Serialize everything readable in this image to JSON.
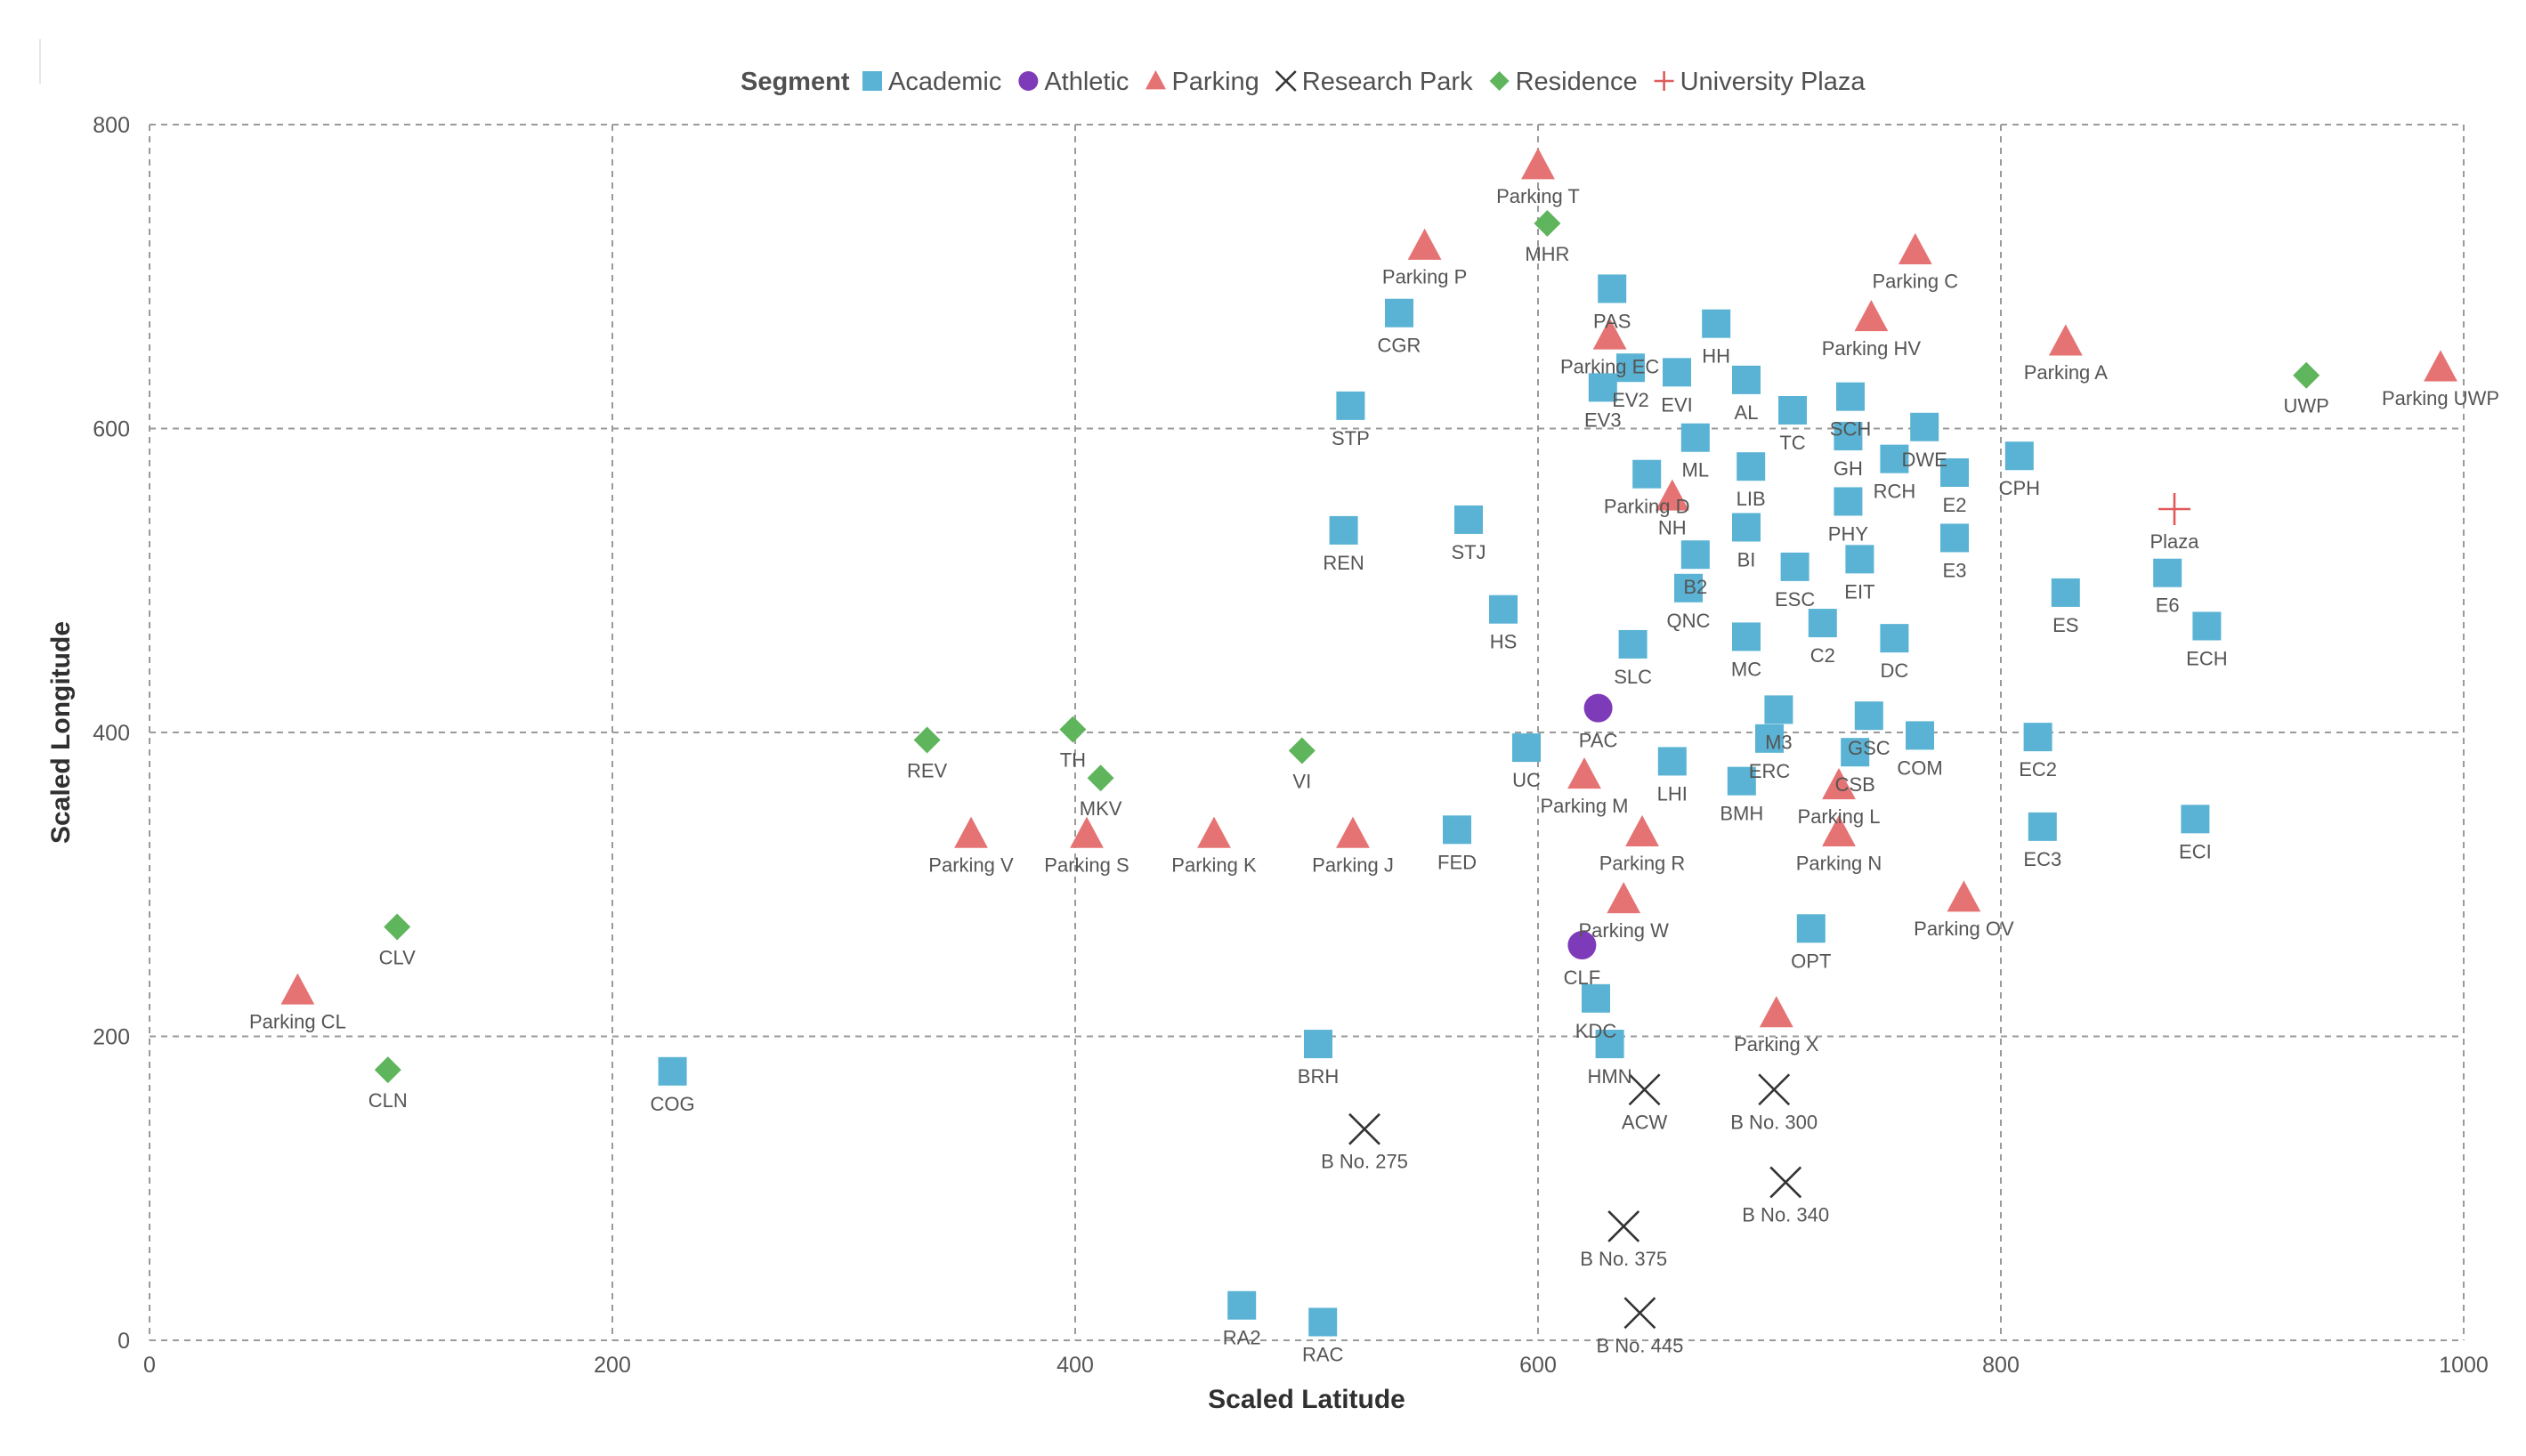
{
  "chart_data": {
    "type": "scatter",
    "title": "",
    "xlabel": "Scaled Latitude",
    "ylabel": "Scaled Longitude",
    "xlim": [
      0,
      1000
    ],
    "ylim": [
      0,
      800
    ],
    "xticks": [
      0,
      200,
      400,
      600,
      800,
      1000
    ],
    "yticks": [
      0,
      200,
      400,
      600,
      800
    ],
    "grid": true,
    "legend_title": "Segment",
    "legend_position": "top-center",
    "series": [
      {
        "name": "Academic",
        "marker": "square",
        "color": "#5AB3D4",
        "points": [
          {
            "label": "CGR",
            "x": 540,
            "y": 676
          },
          {
            "label": "STP",
            "x": 519,
            "y": 615
          },
          {
            "label": "REN",
            "x": 516,
            "y": 533
          },
          {
            "label": "STJ",
            "x": 570,
            "y": 540
          },
          {
            "label": "HS",
            "x": 585,
            "y": 481
          },
          {
            "label": "UC",
            "x": 595,
            "y": 390
          },
          {
            "label": "FED",
            "x": 565,
            "y": 336
          },
          {
            "label": "BRH",
            "x": 505,
            "y": 195
          },
          {
            "label": "COG",
            "x": 226,
            "y": 177
          },
          {
            "label": "RA2",
            "x": 472,
            "y": 23
          },
          {
            "label": "RAC",
            "x": 507,
            "y": 12
          },
          {
            "label": "PAS",
            "x": 632,
            "y": 692
          },
          {
            "label": "EV3",
            "x": 628,
            "y": 627
          },
          {
            "label": "EV2",
            "x": 640,
            "y": 640
          },
          {
            "label": "EVI",
            "x": 660,
            "y": 637
          },
          {
            "label": "HH",
            "x": 677,
            "y": 669
          },
          {
            "label": "AL",
            "x": 690,
            "y": 632
          },
          {
            "label": "TC",
            "x": 710,
            "y": 612
          },
          {
            "label": "SCH",
            "x": 735,
            "y": 621
          },
          {
            "label": "GH",
            "x": 734,
            "y": 595
          },
          {
            "label": "DWE",
            "x": 767,
            "y": 601
          },
          {
            "label": "RCH",
            "x": 754,
            "y": 580
          },
          {
            "label": "E2",
            "x": 780,
            "y": 571
          },
          {
            "label": "CPH",
            "x": 808,
            "y": 582
          },
          {
            "label": "ML",
            "x": 668,
            "y": 594
          },
          {
            "label": "Parking D",
            "x": 647,
            "y": 570
          },
          {
            "label": "LIB",
            "x": 692,
            "y": 575
          },
          {
            "label": "PHY",
            "x": 734,
            "y": 552
          },
          {
            "label": "E3",
            "x": 780,
            "y": 528
          },
          {
            "label": "BI",
            "x": 690,
            "y": 535
          },
          {
            "label": "B2",
            "x": 668,
            "y": 517
          },
          {
            "label": "QNC",
            "x": 665,
            "y": 495
          },
          {
            "label": "ESC",
            "x": 711,
            "y": 509
          },
          {
            "label": "EIT",
            "x": 739,
            "y": 514
          },
          {
            "label": "SLC",
            "x": 641,
            "y": 458
          },
          {
            "label": "MC",
            "x": 690,
            "y": 463
          },
          {
            "label": "C2",
            "x": 723,
            "y": 472
          },
          {
            "label": "DC",
            "x": 754,
            "y": 462
          },
          {
            "label": "M3",
            "x": 704,
            "y": 415
          },
          {
            "label": "ERC",
            "x": 700,
            "y": 396
          },
          {
            "label": "GSC",
            "x": 743,
            "y": 411
          },
          {
            "label": "CSB",
            "x": 737,
            "y": 387
          },
          {
            "label": "COM",
            "x": 765,
            "y": 398
          },
          {
            "label": "LHI",
            "x": 658,
            "y": 381
          },
          {
            "label": "BMH",
            "x": 688,
            "y": 368
          },
          {
            "label": "OPT",
            "x": 718,
            "y": 271
          },
          {
            "label": "KDC",
            "x": 625,
            "y": 225
          },
          {
            "label": "HMN",
            "x": 631,
            "y": 195
          },
          {
            "label": "ES",
            "x": 828,
            "y": 492
          },
          {
            "label": "E6",
            "x": 872,
            "y": 505
          },
          {
            "label": "ECH",
            "x": 889,
            "y": 470
          },
          {
            "label": "EC2",
            "x": 816,
            "y": 397
          },
          {
            "label": "EC3",
            "x": 818,
            "y": 338
          },
          {
            "label": "ECI",
            "x": 884,
            "y": 343
          }
        ]
      },
      {
        "name": "Athletic",
        "marker": "circle",
        "color": "#7E3BB9",
        "points": [
          {
            "label": "PAC",
            "x": 626,
            "y": 416
          },
          {
            "label": "CLF",
            "x": 619,
            "y": 260
          }
        ]
      },
      {
        "name": "Parking",
        "marker": "triangle",
        "color": "#E57373",
        "points": [
          {
            "label": "Parking T",
            "x": 600,
            "y": 773
          },
          {
            "label": "Parking P",
            "x": 551,
            "y": 720
          },
          {
            "label": "Parking EC",
            "x": 631,
            "y": 661
          },
          {
            "label": "Parking C",
            "x": 763,
            "y": 717
          },
          {
            "label": "Parking HV",
            "x": 744,
            "y": 673
          },
          {
            "label": "Parking A",
            "x": 828,
            "y": 657
          },
          {
            "label": "Parking UWP",
            "x": 990,
            "y": 640
          },
          {
            "label": "NH",
            "x": 658,
            "y": 555
          },
          {
            "label": "Parking M",
            "x": 620,
            "y": 372
          },
          {
            "label": "Parking R",
            "x": 645,
            "y": 334
          },
          {
            "label": "Parking W",
            "x": 637,
            "y": 290
          },
          {
            "label": "Parking L",
            "x": 730,
            "y": 365
          },
          {
            "label": "Parking N",
            "x": 730,
            "y": 334
          },
          {
            "label": "Parking OV",
            "x": 784,
            "y": 291
          },
          {
            "label": "Parking X",
            "x": 703,
            "y": 215
          },
          {
            "label": "Parking V",
            "x": 355,
            "y": 333
          },
          {
            "label": "Parking S",
            "x": 405,
            "y": 333
          },
          {
            "label": "Parking K",
            "x": 460,
            "y": 333
          },
          {
            "label": "Parking J",
            "x": 520,
            "y": 333
          },
          {
            "label": "Parking CL",
            "x": 64,
            "y": 230
          }
        ]
      },
      {
        "name": "Research Park",
        "marker": "x",
        "color": "#333333",
        "points": [
          {
            "label": "ACW",
            "x": 646,
            "y": 165
          },
          {
            "label": "B No. 300",
            "x": 702,
            "y": 165
          },
          {
            "label": "B No. 275",
            "x": 525,
            "y": 139
          },
          {
            "label": "B No. 340",
            "x": 707,
            "y": 104
          },
          {
            "label": "B No. 375",
            "x": 637,
            "y": 75
          },
          {
            "label": "B No. 445",
            "x": 644,
            "y": 18
          }
        ]
      },
      {
        "name": "Residence",
        "marker": "diamond",
        "color": "#5FB55C",
        "points": [
          {
            "label": "MHR",
            "x": 604,
            "y": 735
          },
          {
            "label": "UWP",
            "x": 932,
            "y": 635
          },
          {
            "label": "TH",
            "x": 399,
            "y": 402
          },
          {
            "label": "MKV",
            "x": 411,
            "y": 370
          },
          {
            "label": "REV",
            "x": 336,
            "y": 395
          },
          {
            "label": "VI",
            "x": 498,
            "y": 388
          },
          {
            "label": "CLV",
            "x": 107,
            "y": 272
          },
          {
            "label": "CLN",
            "x": 103,
            "y": 178
          }
        ]
      },
      {
        "name": "University Plaza",
        "marker": "plus",
        "color": "#E05A5A",
        "points": [
          {
            "label": "Plaza",
            "x": 875,
            "y": 547
          }
        ]
      }
    ]
  }
}
